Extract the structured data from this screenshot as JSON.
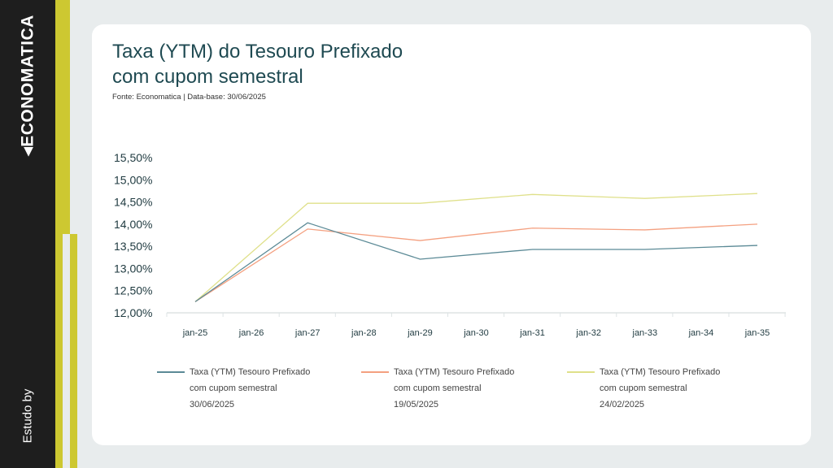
{
  "sidebar": {
    "logo": "ECONOMATICA",
    "study_by": "Estudo by"
  },
  "header": {
    "title_line1": "Taxa (YTM) do Tesouro Prefixado",
    "title_line2": "com cupom semestral",
    "source": "Fonte: Economatica | Data-base: 30/06/2025"
  },
  "colors": {
    "accent": "#cdc831",
    "blue": "#5b8a96",
    "orange": "#f4a080",
    "yellow": "#dfe08a"
  },
  "chart_data": {
    "type": "line",
    "title": "Taxa (YTM) do Tesouro Prefixado com cupom semestral",
    "categories": [
      "jan-25",
      "jan-26",
      "jan-27",
      "jan-28",
      "jan-29",
      "jan-30",
      "jan-31",
      "jan-32",
      "jan-33",
      "jan-34",
      "jan-35"
    ],
    "yticks": [
      "12,00%",
      "12,50%",
      "13,00%",
      "13,50%",
      "14,00%",
      "14,50%",
      "15,00%",
      "15,50%"
    ],
    "ylim": [
      12.0,
      15.5
    ],
    "legend_position": "bottom",
    "series": [
      {
        "name": "Taxa (YTM) Tesouro Prefixado",
        "name2": "com cupom semestral",
        "date": "30/06/2025",
        "color": "#5b8a96",
        "points": [
          [
            0,
            12.25
          ],
          [
            2,
            14.03
          ],
          [
            4,
            13.21
          ],
          [
            6,
            13.43
          ],
          [
            8,
            13.43
          ],
          [
            10,
            13.52
          ]
        ]
      },
      {
        "name": "Taxa (YTM) Tesouro Prefixado",
        "name2": "com cupom semestral",
        "date": "19/05/2025",
        "color": "#f4a080",
        "points": [
          [
            0,
            12.25
          ],
          [
            2,
            13.89
          ],
          [
            4,
            13.63
          ],
          [
            6,
            13.91
          ],
          [
            8,
            13.87
          ],
          [
            10,
            14.0
          ]
        ]
      },
      {
        "name": "Taxa (YTM) Tesouro Prefixado",
        "name2": "com cupom semestral",
        "date": "24/02/2025",
        "color": "#dfe08a",
        "points": [
          [
            0,
            12.25
          ],
          [
            2,
            14.47
          ],
          [
            4,
            14.47
          ],
          [
            6,
            14.67
          ],
          [
            8,
            14.58
          ],
          [
            10,
            14.69
          ]
        ]
      }
    ]
  }
}
